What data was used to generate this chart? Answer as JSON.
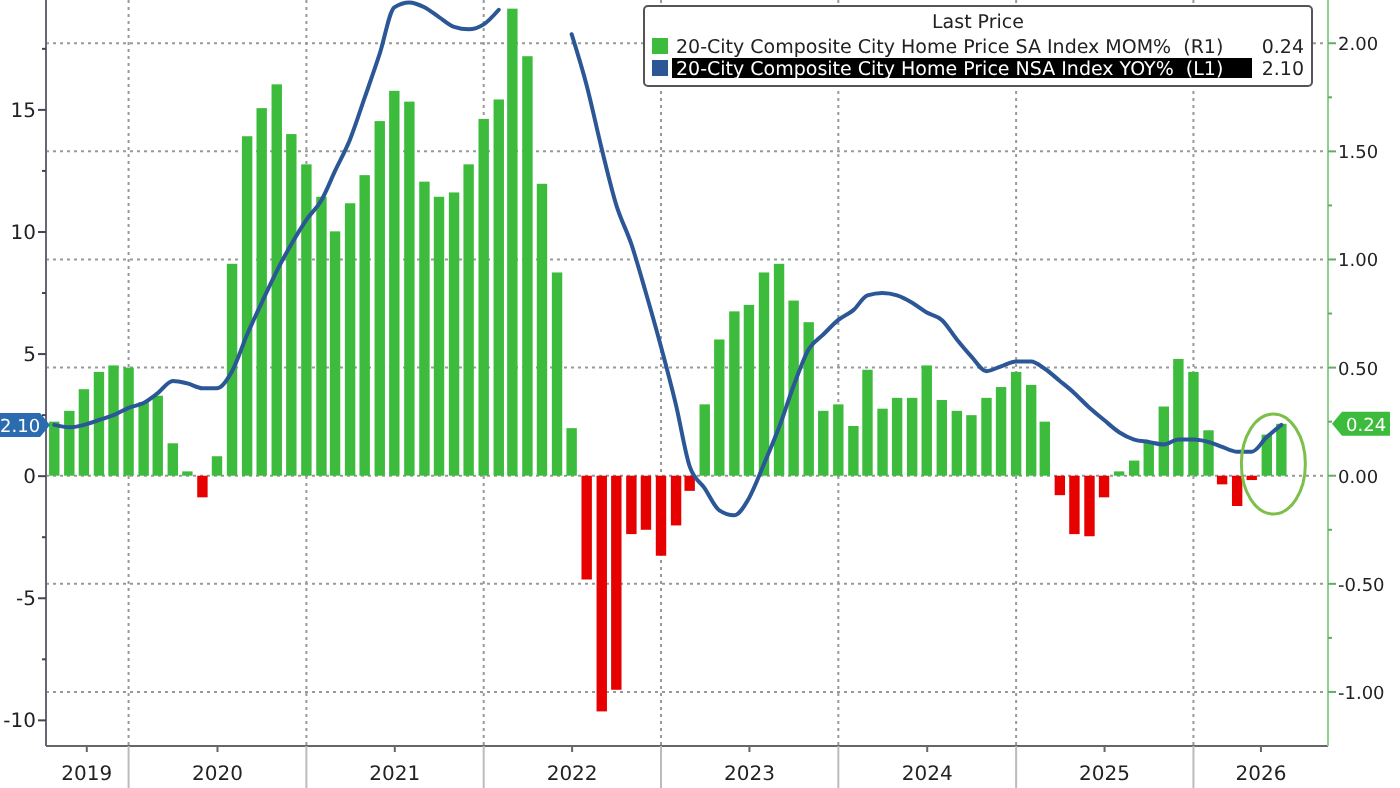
{
  "chart_data": {
    "type": "bar",
    "legend_title": "Last Price",
    "legend": "top right",
    "grid": true,
    "x": [
      "2019-08",
      "2019-09",
      "2019-10",
      "2019-11",
      "2019-12",
      "2020-01",
      "2020-02",
      "2020-03",
      "2020-04",
      "2020-05",
      "2020-06",
      "2020-07",
      "2020-08",
      "2020-09",
      "2020-10",
      "2020-11",
      "2020-12",
      "2021-01",
      "2021-02",
      "2021-03",
      "2021-04",
      "2021-05",
      "2021-06",
      "2021-07",
      "2021-08",
      "2021-09",
      "2021-10",
      "2021-11",
      "2021-12",
      "2022-01",
      "2022-02",
      "2022-03",
      "2022-04",
      "2022-05",
      "2022-06",
      "2022-07",
      "2022-08",
      "2022-09",
      "2022-10",
      "2022-11",
      "2022-12",
      "2023-01",
      "2023-02",
      "2023-03",
      "2023-04",
      "2023-05",
      "2023-06",
      "2023-07",
      "2023-08",
      "2023-09",
      "2023-10",
      "2023-11",
      "2023-12",
      "2024-01",
      "2024-02",
      "2024-03",
      "2024-04",
      "2024-05",
      "2024-06",
      "2024-07",
      "2024-08",
      "2024-09",
      "2024-10",
      "2024-11",
      "2024-12",
      "2025-01",
      "2025-02",
      "2025-03",
      "2025-04",
      "2025-05",
      "2025-06",
      "2025-07",
      "2025-08",
      "2025-09",
      "2025-10",
      "2025-11",
      "2025-12",
      "2026-01",
      "2026-02",
      "2026-03",
      "2026-04",
      "2026-05",
      "2026-06",
      "2026-07"
    ],
    "xlim": [
      "2019-07-15",
      "2026-10-05"
    ],
    "xticks": [
      {
        "value": "2019-10-07",
        "label": "2019"
      },
      {
        "value": "2020-01-01",
        "label": null
      },
      {
        "value": "2020-07-02",
        "label": "2020"
      },
      {
        "value": "2021-01-01",
        "label": null
      },
      {
        "value": "2021-07-02",
        "label": "2021"
      },
      {
        "value": "2022-01-01",
        "label": null
      },
      {
        "value": "2022-07-02",
        "label": "2022"
      },
      {
        "value": "2023-01-01",
        "label": null
      },
      {
        "value": "2023-07-02",
        "label": "2023"
      },
      {
        "value": "2024-01-01",
        "label": null
      },
      {
        "value": "2024-07-02",
        "label": "2024"
      },
      {
        "value": "2025-01-01",
        "label": null
      },
      {
        "value": "2025-07-02",
        "label": "2025"
      },
      {
        "value": "2026-01-01",
        "label": null
      },
      {
        "value": "2026-05-20",
        "label": "2026"
      }
    ],
    "ylim": [
      -11.05,
      19.5
    ],
    "yticks": [
      {
        "value": -10,
        "label": "-10"
      },
      {
        "value": -7.5,
        "label": null
      },
      {
        "value": -5,
        "label": "-5"
      },
      {
        "value": -2.5,
        "label": null
      },
      0,
      {
        "value": 2.5,
        "label": null
      },
      5,
      {
        "value": 7.5,
        "label": null
      },
      10,
      {
        "value": 12.5,
        "label": null
      },
      15,
      {
        "value": 17.5,
        "label": null
      }
    ],
    "y2lim": [
      -1.25,
      2.2
    ],
    "y2ticks": [
      {
        "value": -1,
        "label": "-1.00"
      },
      {
        "value": -0.75,
        "label": null
      },
      {
        "value": -0.5,
        "label": "-0.50"
      },
      {
        "value": -0.25,
        "label": null
      },
      {
        "value": 0,
        "label": "0.00"
      },
      {
        "value": 0.25,
        "label": null
      },
      {
        "value": 0.5,
        "label": "0.50"
      },
      {
        "value": 0.75,
        "label": null
      },
      {
        "value": 1,
        "label": "1.00"
      },
      {
        "value": 1.25,
        "label": null
      },
      {
        "value": 1.5,
        "label": "1.50"
      },
      {
        "value": 1.75,
        "label": null
      },
      {
        "value": 2,
        "label": "2.00"
      }
    ],
    "annotations": [
      "0.24",
      "2.10"
    ],
    "series": [
      {
        "name": "20-City Composite City Home Price SA Index MOM%  (R1)",
        "axis": "y2",
        "color": "#3dbb3d",
        "colors": [
          "#3dbb3d",
          "#3dbb3d",
          "#3dbb3d",
          "#3dbb3d",
          "#3dbb3d",
          "#3dbb3d",
          "#3dbb3d",
          "#3dbb3d",
          "#3dbb3d",
          "#3dbb3d",
          "#e60000",
          "#3dbb3d",
          "#3dbb3d",
          "#3dbb3d",
          "#3dbb3d",
          "#3dbb3d",
          "#3dbb3d",
          "#3dbb3d",
          "#3dbb3d",
          "#3dbb3d",
          "#3dbb3d",
          "#3dbb3d",
          "#3dbb3d",
          "#3dbb3d",
          "#3dbb3d",
          "#3dbb3d",
          "#3dbb3d",
          "#3dbb3d",
          "#3dbb3d",
          "#3dbb3d",
          "#3dbb3d",
          "#3dbb3d",
          "#3dbb3d",
          "#3dbb3d",
          "#3dbb3d",
          "#3dbb3d",
          "#e60000",
          "#e60000",
          "#e60000",
          "#e60000",
          "#e60000",
          "#e60000",
          "#e60000",
          "#e60000",
          "#3dbb3d",
          "#3dbb3d",
          "#3dbb3d",
          "#3dbb3d",
          "#3dbb3d",
          "#3dbb3d",
          "#3dbb3d",
          "#3dbb3d",
          "#3dbb3d",
          "#3dbb3d",
          "#3dbb3d",
          "#3dbb3d",
          "#3dbb3d",
          "#3dbb3d",
          "#3dbb3d",
          "#3dbb3d",
          "#3dbb3d",
          "#3dbb3d",
          "#3dbb3d",
          "#3dbb3d",
          "#3dbb3d",
          "#3dbb3d",
          "#3dbb3d",
          "#3dbb3d",
          "#e60000",
          "#e60000",
          "#e60000",
          "#e60000",
          "#3dbb3d",
          "#3dbb3d",
          "#3dbb3d",
          "#3dbb3d",
          "#3dbb3d",
          "#3dbb3d",
          "#3dbb3d",
          "#e60000",
          "#e60000",
          "#e60000",
          "#3dbb3d",
          "#3dbb3d"
        ],
        "values": [
          0.25,
          0.3,
          0.4,
          0.48,
          0.51,
          0.5,
          0.34,
          0.37,
          0.15,
          0.02,
          -0.1,
          0.09,
          0.98,
          1.57,
          1.7,
          1.81,
          1.58,
          1.44,
          1.29,
          1.13,
          1.26,
          1.39,
          1.64,
          1.78,
          1.73,
          1.36,
          1.29,
          1.31,
          1.44,
          1.65,
          1.74,
          2.16,
          1.94,
          1.35,
          0.94,
          0.22,
          -0.48,
          -1.09,
          -0.99,
          -0.27,
          -0.25,
          -0.37,
          -0.23,
          -0.07,
          0.33,
          0.63,
          0.76,
          0.79,
          0.94,
          0.98,
          0.81,
          0.71,
          0.3,
          0.33,
          0.23,
          0.49,
          0.31,
          0.36,
          0.36,
          0.51,
          0.35,
          0.3,
          0.28,
          0.36,
          0.41,
          0.48,
          0.42,
          0.25,
          -0.09,
          -0.27,
          -0.28,
          -0.1,
          0.02,
          0.07,
          0.16,
          0.32,
          0.54,
          0.48,
          0.21,
          -0.04,
          -0.14,
          -0.02,
          0.19,
          0.24
        ]
      },
      {
        "name": "20-City Composite City Home Price NSA Index YOY%  (L1)",
        "type": "line",
        "color": "#2b5797",
        "values": [
          2.1,
          2.0,
          2.1,
          2.3,
          2.5,
          2.8,
          3.0,
          3.4,
          3.9,
          3.8,
          3.6,
          3.6,
          4.3,
          5.8,
          7.1,
          8.4,
          9.5,
          10.5,
          11.3,
          12.5,
          13.8,
          15.5,
          17.3,
          19.2,
          19.4,
          19.2,
          18.8,
          18.4,
          18.3,
          18.5,
          19.1,
          null,
          null,
          null,
          null,
          18.1,
          16.0,
          13.4,
          11.1,
          9.5,
          7.5,
          5.3,
          2.9,
          0.4,
          -0.5,
          -1.4,
          -1.6,
          -0.9,
          0.5,
          2.0,
          3.7,
          5.2,
          5.8,
          6.4,
          6.8,
          7.4,
          7.5,
          7.4,
          7.1,
          6.7,
          6.4,
          5.6,
          4.9,
          4.3,
          4.5,
          4.7,
          4.7,
          4.4,
          3.9,
          3.4,
          2.8,
          2.3,
          1.8,
          1.5,
          1.4,
          1.3,
          1.5,
          1.5,
          1.4,
          1.2,
          1.0,
          1.0,
          1.6,
          2.1
        ]
      }
    ]
  }
}
